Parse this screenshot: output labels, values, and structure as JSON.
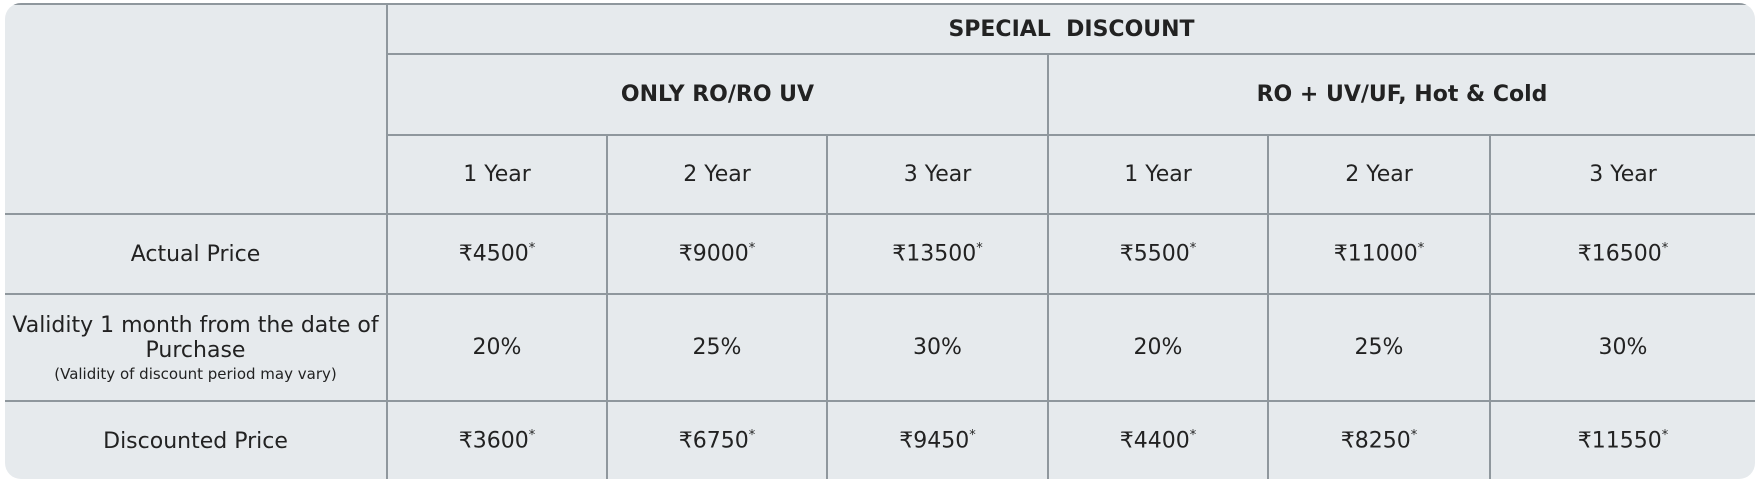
{
  "header": {
    "title": "SPECIAL  DISCOUNT"
  },
  "groups": [
    "ONLY RO/RO UV",
    "RO + UV/UF, Hot & Cold"
  ],
  "periods": [
    "1 Year",
    "2 Year",
    "3 Year",
    "1 Year",
    "2 Year",
    "3 Year"
  ],
  "rows": [
    {
      "label": "Actual Price",
      "cells": [
        {
          "text": "₹4500",
          "note": "*"
        },
        {
          "text": "₹9000",
          "note": "*"
        },
        {
          "text": "₹13500",
          "note": "*"
        },
        {
          "text": "₹5500",
          "note": "*"
        },
        {
          "text": "₹11000",
          "note": "*"
        },
        {
          "text": "₹16500",
          "note": "*"
        }
      ]
    },
    {
      "label": "Validity 1 month from the date of Purchase",
      "sublabel": "(Validity of discount period may vary)",
      "cells": [
        {
          "text": "20%"
        },
        {
          "text": "25%"
        },
        {
          "text": "30%"
        },
        {
          "text": "20%"
        },
        {
          "text": "25%"
        },
        {
          "text": "30%"
        }
      ]
    },
    {
      "label": "Discounted Price",
      "cells": [
        {
          "text": "₹3600",
          "note": "*"
        },
        {
          "text": "₹6750",
          "note": "*"
        },
        {
          "text": "₹9450",
          "note": "*"
        },
        {
          "text": "₹4400",
          "note": "*"
        },
        {
          "text": "₹8250",
          "note": "*"
        },
        {
          "text": "₹11550",
          "note": "*"
        }
      ]
    }
  ]
}
